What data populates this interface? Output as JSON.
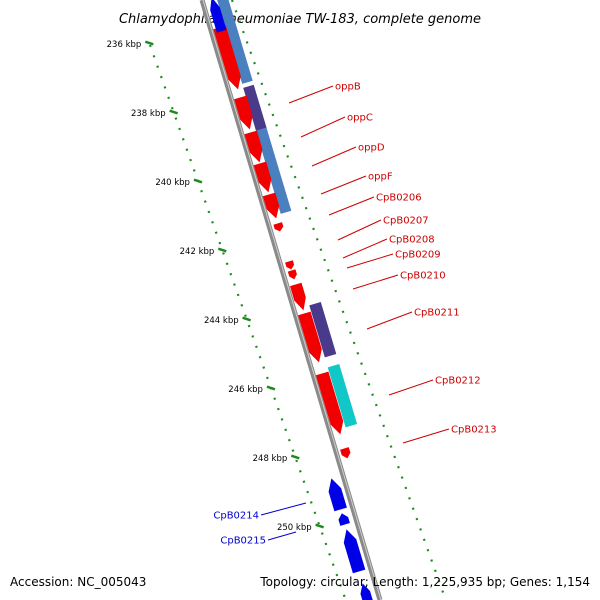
{
  "title": "Chlamydophila pneumoniae TW-183, complete genome",
  "footer": {
    "accession": "Accession: NC_005043",
    "summary": "Topology: circular; Length: 1,225,935 bp; Genes: 1,154"
  },
  "colors": {
    "background": "#ffffff",
    "backbone": "#8a8a8a",
    "forward_gene": "#f20000",
    "reverse_gene": "#0000e6",
    "forward_label": "#cc0000",
    "reverse_label": "#0000cc",
    "ruler": "#1e8a1e",
    "feature_steelblue": "#4a7fc0",
    "feature_purple": "#4a3a8c",
    "feature_cyan": "#11c7c7"
  },
  "ruler": {
    "unit": "kbp",
    "ticks": [
      "236 kbp",
      "238 kbp",
      "240 kbp",
      "242 kbp",
      "244 kbp",
      "246 kbp",
      "248 kbp",
      "250 kbp"
    ]
  },
  "genes": [
    {
      "label": "oppB",
      "strand": "forward"
    },
    {
      "label": "oppC",
      "strand": "forward"
    },
    {
      "label": "oppD",
      "strand": "forward"
    },
    {
      "label": "oppF",
      "strand": "forward"
    },
    {
      "label": "CpB0206",
      "strand": "forward"
    },
    {
      "label": "CpB0207",
      "strand": "forward"
    },
    {
      "label": "CpB0208",
      "strand": "forward"
    },
    {
      "label": "CpB0209",
      "strand": "forward"
    },
    {
      "label": "CpB0210",
      "strand": "forward"
    },
    {
      "label": "CpB0211",
      "strand": "forward"
    },
    {
      "label": "CpB0212",
      "strand": "forward"
    },
    {
      "label": "CpB0213",
      "strand": "forward"
    },
    {
      "label": "CpB0214",
      "strand": "reverse"
    },
    {
      "label": "CpB0215",
      "strand": "reverse"
    }
  ]
}
